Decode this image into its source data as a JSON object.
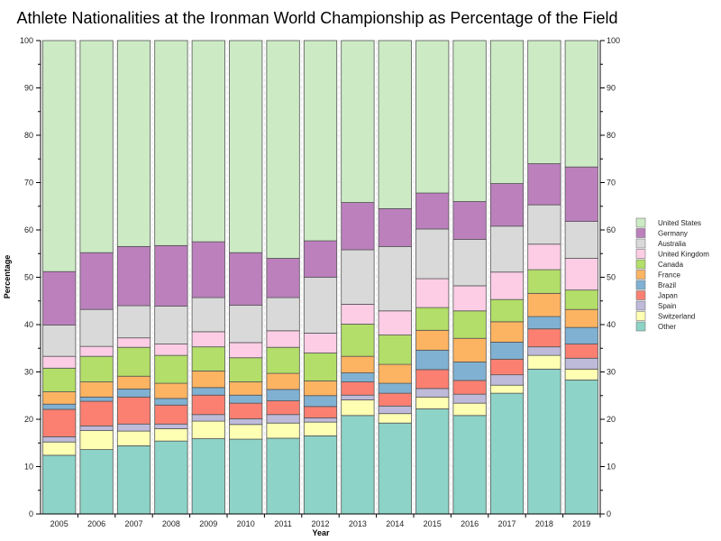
{
  "chart_data": {
    "type": "bar",
    "stacked": true,
    "title": "Athlete Nationalities at the Ironman World Championship as Percentage of the Field",
    "xlabel": "Year",
    "ylabel": "Percentage",
    "ylim": [
      0,
      100
    ],
    "yticks": [
      0,
      10,
      20,
      30,
      40,
      50,
      60,
      70,
      80,
      90,
      100
    ],
    "legend_position": "right",
    "categories": [
      "2005",
      "2006",
      "2007",
      "2008",
      "2009",
      "2010",
      "2011",
      "2012",
      "2013",
      "2014",
      "2015",
      "2016",
      "2017",
      "2018",
      "2019"
    ],
    "series": [
      {
        "name": "Other",
        "color": "#8dd3c7",
        "values": [
          12.4,
          13.6,
          14.4,
          15.4,
          15.9,
          15.8,
          16.0,
          16.5,
          20.8,
          19.2,
          22.2,
          20.8,
          25.5,
          30.6,
          28.3
        ]
      },
      {
        "name": "Switzerland",
        "color": "#ffffb3",
        "values": [
          2.8,
          4.0,
          3.1,
          2.6,
          3.7,
          3.1,
          3.2,
          2.9,
          3.3,
          2.0,
          2.5,
          2.6,
          1.7,
          2.9,
          2.3
        ]
      },
      {
        "name": "Spain",
        "color": "#bebada",
        "values": [
          1.1,
          1.0,
          1.5,
          1.0,
          1.4,
          1.2,
          1.8,
          0.9,
          1.0,
          1.6,
          1.8,
          1.9,
          2.2,
          1.8,
          2.3
        ]
      },
      {
        "name": "Japan",
        "color": "#fb8072",
        "values": [
          5.8,
          5.2,
          5.7,
          4.0,
          4.1,
          3.3,
          2.9,
          2.4,
          2.8,
          2.7,
          4.0,
          2.9,
          3.3,
          3.8,
          3.0
        ]
      },
      {
        "name": "Brazil",
        "color": "#80b1d3",
        "values": [
          1.1,
          0.9,
          1.7,
          1.4,
          1.6,
          1.7,
          2.4,
          2.3,
          1.9,
          2.1,
          4.1,
          3.9,
          3.6,
          2.6,
          3.5
        ]
      },
      {
        "name": "France",
        "color": "#fdb462",
        "values": [
          2.6,
          3.2,
          2.7,
          3.2,
          3.5,
          2.8,
          3.4,
          3.1,
          3.5,
          4.0,
          4.2,
          5.0,
          4.3,
          4.9,
          3.8
        ]
      },
      {
        "name": "Canada",
        "color": "#b3de69",
        "values": [
          5.0,
          5.4,
          6.1,
          5.9,
          5.1,
          5.1,
          5.5,
          5.9,
          6.8,
          6.2,
          4.8,
          5.8,
          4.7,
          5.0,
          4.1
        ]
      },
      {
        "name": "United Kingdom",
        "color": "#fccde5",
        "values": [
          2.5,
          2.1,
          2.0,
          2.4,
          3.2,
          3.2,
          3.5,
          4.2,
          4.2,
          5.1,
          6.1,
          5.3,
          5.8,
          5.4,
          6.7
        ]
      },
      {
        "name": "Australia",
        "color": "#d9d9d9",
        "values": [
          6.6,
          7.8,
          6.8,
          8.0,
          7.2,
          7.9,
          7.0,
          11.8,
          11.5,
          13.6,
          10.5,
          9.8,
          9.7,
          8.3,
          7.8
        ]
      },
      {
        "name": "Germany",
        "color": "#bc80bd",
        "values": [
          11.3,
          12.0,
          12.5,
          12.8,
          11.8,
          11.1,
          8.3,
          7.7,
          10.0,
          8.0,
          7.6,
          8.0,
          9.0,
          8.7,
          11.5
        ]
      },
      {
        "name": "United States",
        "color": "#ccebc5",
        "values": [
          48.8,
          44.8,
          43.5,
          43.3,
          42.5,
          44.8,
          46.0,
          42.3,
          34.2,
          35.5,
          32.2,
          34.0,
          30.2,
          26.0,
          26.7
        ]
      }
    ]
  }
}
